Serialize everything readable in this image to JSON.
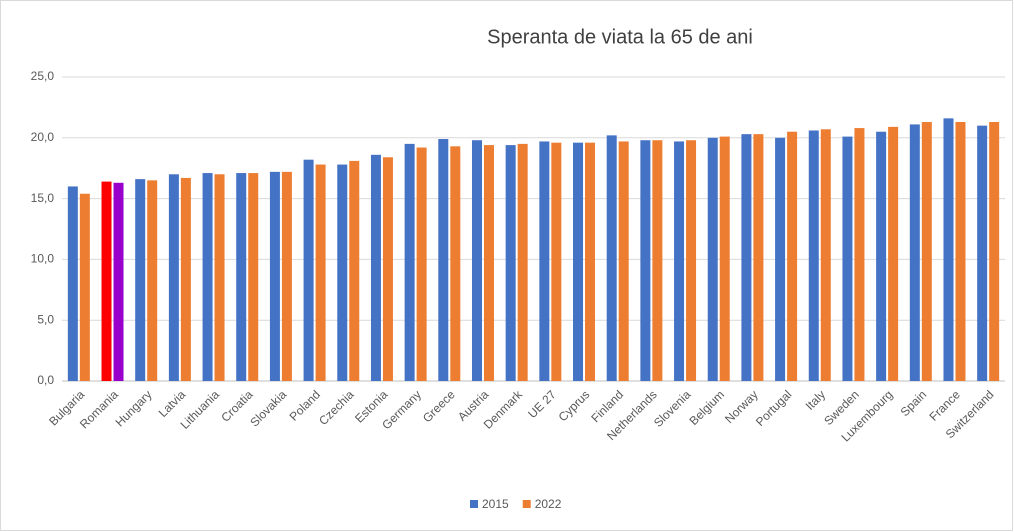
{
  "chart_data": {
    "type": "bar",
    "title": "Speranta de viata la 65 de ani",
    "categories": [
      "Bulgaria",
      "Romania",
      "Hungary",
      "Latvia",
      "Lithuania",
      "Croatia",
      "Slovakia",
      "Poland",
      "Czechia",
      "Estonia",
      "Germany",
      "Greece",
      "Austria",
      "Denmark",
      "UE 27",
      "Cyprus",
      "Finland",
      "Netherlands",
      "Slovenia",
      "Belgium",
      "Norway",
      "Portugal",
      "Italy",
      "Sweden",
      "Luxembourg",
      "Spain",
      "France",
      "Switzerland"
    ],
    "series": [
      {
        "name": "2015",
        "color": "#4472c4",
        "colors": [
          "#4472c4",
          "#ff0000",
          "#4472c4",
          "#4472c4",
          "#4472c4",
          "#4472c4",
          "#4472c4",
          "#4472c4",
          "#4472c4",
          "#4472c4",
          "#4472c4",
          "#4472c4",
          "#4472c4",
          "#4472c4",
          "#4472c4",
          "#4472c4",
          "#4472c4",
          "#4472c4",
          "#4472c4",
          "#4472c4",
          "#4472c4",
          "#4472c4",
          "#4472c4",
          "#4472c4",
          "#4472c4",
          "#4472c4",
          "#4472c4",
          "#4472c4"
        ],
        "values": [
          16.0,
          16.4,
          16.6,
          17.0,
          17.1,
          17.1,
          17.2,
          18.2,
          17.8,
          18.6,
          19.5,
          19.9,
          19.8,
          19.4,
          19.7,
          19.6,
          20.2,
          19.8,
          19.7,
          20.0,
          20.3,
          20.0,
          20.6,
          20.1,
          20.5,
          21.1,
          21.6,
          21.0
        ]
      },
      {
        "name": "2022",
        "color": "#ed7d31",
        "colors": [
          "#ed7d31",
          "#9900cc",
          "#ed7d31",
          "#ed7d31",
          "#ed7d31",
          "#ed7d31",
          "#ed7d31",
          "#ed7d31",
          "#ed7d31",
          "#ed7d31",
          "#ed7d31",
          "#ed7d31",
          "#ed7d31",
          "#ed7d31",
          "#ed7d31",
          "#ed7d31",
          "#ed7d31",
          "#ed7d31",
          "#ed7d31",
          "#ed7d31",
          "#ed7d31",
          "#ed7d31",
          "#ed7d31",
          "#ed7d31",
          "#ed7d31",
          "#ed7d31",
          "#ed7d31",
          "#ed7d31"
        ],
        "values": [
          15.4,
          16.3,
          16.5,
          16.7,
          17.0,
          17.1,
          17.2,
          17.8,
          18.1,
          18.4,
          19.2,
          19.3,
          19.4,
          19.5,
          19.6,
          19.6,
          19.7,
          19.8,
          19.8,
          20.1,
          20.3,
          20.5,
          20.7,
          20.8,
          20.9,
          21.3,
          21.3,
          21.3
        ]
      }
    ],
    "ylim": [
      0,
      25
    ],
    "yticks": [
      {
        "value": 0,
        "label": "0,0"
      },
      {
        "value": 5,
        "label": "5,0"
      },
      {
        "value": 10,
        "label": "10,0"
      },
      {
        "value": 15,
        "label": "15,0"
      },
      {
        "value": 20,
        "label": "20,0"
      },
      {
        "value": 25,
        "label": "25,0"
      }
    ],
    "grid": true,
    "legend": "bottom"
  }
}
